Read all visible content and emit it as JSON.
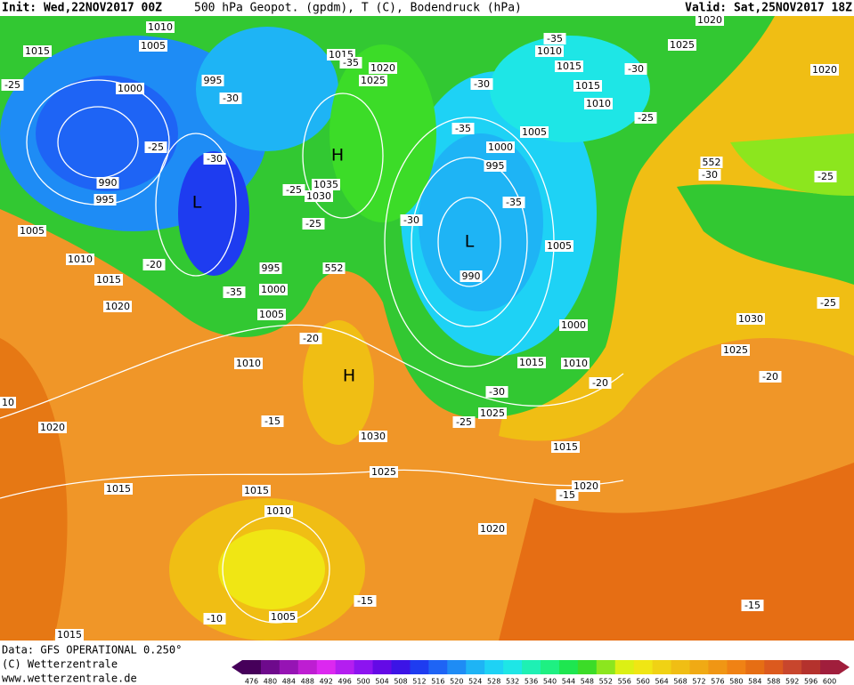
{
  "header": {
    "init": "Init: Wed,22NOV2017 00Z",
    "product": "500 hPa Geopot. (gpdm), T (C), Bodendruck (hPa)",
    "valid": "Valid: Sat,25NOV2017 18Z"
  },
  "footer": {
    "data": "Data: GFS OPERATIONAL 0.250°",
    "copyright": "(C) Wetterzentrale",
    "url": "www.wetterzentrale.de"
  },
  "scale": {
    "labels": [
      "476",
      "480",
      "484",
      "488",
      "492",
      "496",
      "500",
      "504",
      "508",
      "512",
      "516",
      "520",
      "524",
      "528",
      "532",
      "536",
      "540",
      "544",
      "548",
      "552",
      "556",
      "560",
      "564",
      "568",
      "572",
      "576",
      "580",
      "584",
      "588",
      "592",
      "596",
      "600"
    ],
    "colors": [
      "#46005a",
      "#6e0a8c",
      "#9614b4",
      "#be1ed2",
      "#dc28f0",
      "#b41ef0",
      "#8c14f0",
      "#640ae6",
      "#3c14e6",
      "#1e3cf0",
      "#1e64f5",
      "#1e8cf5",
      "#1eb4f5",
      "#1ed2f5",
      "#1ee6e6",
      "#1ef0b4",
      "#1ef082",
      "#1ee650",
      "#3cdc28",
      "#8ce61e",
      "#dcf014",
      "#f0e614",
      "#f0d214",
      "#f0be14",
      "#f0aa14",
      "#f09614",
      "#f08214",
      "#e66e14",
      "#dc5a1e",
      "#c8462d",
      "#b4322d",
      "#a01e3c"
    ]
  },
  "map": {
    "labels": [
      "1010",
      "1005",
      "1015",
      "-25",
      "1000",
      "995",
      "-30",
      "-25",
      "-30",
      "990",
      "995",
      "L",
      "H",
      "-25",
      "1035",
      "1030",
      "-25",
      "1005",
      "1010",
      "-20",
      "1015",
      "995",
      "-35",
      "1000",
      "1020",
      "1005",
      "552",
      "1015",
      "-35",
      "1020",
      "1025",
      "-30",
      "-35",
      "1000",
      "1005",
      "995",
      "-35",
      "-30",
      "L",
      "990",
      "1005",
      "1000",
      "1015",
      "1010",
      "-20",
      "1010",
      "H",
      "-30",
      "-20",
      "-25",
      "1025",
      "-15",
      "1030",
      "1015",
      "1025",
      "1020",
      "-15",
      "1015",
      "1010",
      "1020",
      "-15",
      "-10",
      "1005",
      "1015",
      "1020",
      "1015",
      "10",
      "-35",
      "1010",
      "1015",
      "-30",
      "1015",
      "1010",
      "-25",
      "1025",
      "1020",
      "1020",
      "552",
      "-30",
      "-25",
      "1030",
      "1025",
      "-25",
      "-20",
      "-15"
    ]
  }
}
